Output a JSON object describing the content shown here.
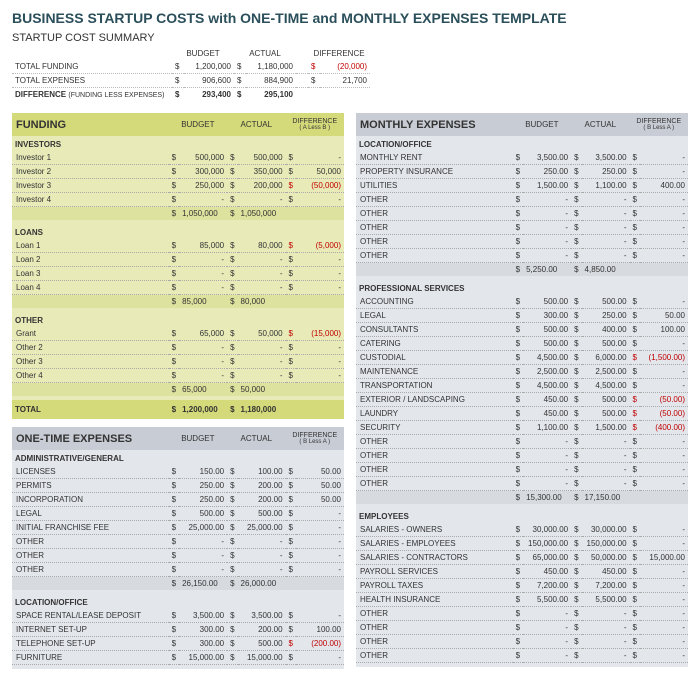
{
  "title": "BUSINESS STARTUP COSTS with ONE-TIME and MONTHLY EXPENSES TEMPLATE",
  "summary": {
    "title": "STARTUP COST SUMMARY",
    "columns": [
      "BUDGET",
      "ACTUAL",
      "DIFFERENCE"
    ],
    "rows": [
      {
        "label": "TOTAL FUNDING",
        "budget": "1,200,000",
        "actual": "1,180,000",
        "diff": "(20,000)",
        "diff_neg": true
      },
      {
        "label": "TOTAL EXPENSES",
        "budget": "906,600",
        "actual": "884,900",
        "diff": "21,700",
        "diff_neg": false
      }
    ],
    "diff_row": {
      "label": "DIFFERENCE",
      "note": "(FUNDING LESS EXPENSES)",
      "budget": "293,400",
      "actual": "295,100"
    }
  },
  "funding": {
    "title": "FUNDING",
    "columns": [
      "BUDGET",
      "ACTUAL"
    ],
    "diff_head": "DIFFERENCE",
    "diff_sub": "( A Less B )",
    "groups": [
      {
        "name": "INVESTORS",
        "rows": [
          {
            "label": "Investor 1",
            "b": "500,000",
            "a": "500,000",
            "d": "-"
          },
          {
            "label": "Investor 2",
            "b": "300,000",
            "a": "350,000",
            "d": "50,000"
          },
          {
            "label": "Investor 3",
            "b": "250,000",
            "a": "200,000",
            "d": "(50,000)",
            "neg": true
          },
          {
            "label": "Investor 4",
            "b": "-",
            "a": "-",
            "d": "-"
          }
        ],
        "subtotal": {
          "b": "1,050,000",
          "a": "1,050,000"
        }
      },
      {
        "name": "LOANS",
        "rows": [
          {
            "label": "Loan 1",
            "b": "85,000",
            "a": "80,000",
            "d": "(5,000)",
            "neg": true
          },
          {
            "label": "Loan 2",
            "b": "-",
            "a": "-",
            "d": "-"
          },
          {
            "label": "Loan 3",
            "b": "-",
            "a": "-",
            "d": "-"
          },
          {
            "label": "Loan 4",
            "b": "-",
            "a": "-",
            "d": "-"
          }
        ],
        "subtotal": {
          "b": "85,000",
          "a": "80,000"
        }
      },
      {
        "name": "OTHER",
        "rows": [
          {
            "label": "Grant",
            "b": "65,000",
            "a": "50,000",
            "d": "(15,000)",
            "neg": true
          },
          {
            "label": "Other 2",
            "b": "-",
            "a": "-",
            "d": "-"
          },
          {
            "label": "Other 3",
            "b": "-",
            "a": "-",
            "d": "-"
          },
          {
            "label": "Other 4",
            "b": "-",
            "a": "-",
            "d": "-"
          }
        ],
        "subtotal": {
          "b": "65,000",
          "a": "50,000"
        }
      }
    ],
    "total": {
      "label": "TOTAL",
      "b": "1,200,000",
      "a": "1,180,000"
    }
  },
  "onetime": {
    "title": "ONE-TIME EXPENSES",
    "columns": [
      "BUDGET",
      "ACTUAL"
    ],
    "diff_head": "DIFFERENCE",
    "diff_sub": "( B Less A )",
    "groups": [
      {
        "name": "ADMINISTRATIVE/GENERAL",
        "rows": [
          {
            "label": "LICENSES",
            "b": "150.00",
            "a": "100.00",
            "d": "50.00"
          },
          {
            "label": "PERMITS",
            "b": "250.00",
            "a": "200.00",
            "d": "50.00"
          },
          {
            "label": "INCORPORATION",
            "b": "250.00",
            "a": "200.00",
            "d": "50.00"
          },
          {
            "label": "LEGAL",
            "b": "500.00",
            "a": "500.00",
            "d": "-"
          },
          {
            "label": "INITIAL FRANCHISE FEE",
            "b": "25,000.00",
            "a": "25,000.00",
            "d": "-"
          },
          {
            "label": "OTHER",
            "b": "-",
            "a": "-",
            "d": "-"
          },
          {
            "label": "OTHER",
            "b": "-",
            "a": "-",
            "d": "-"
          },
          {
            "label": "OTHER",
            "b": "-",
            "a": "-",
            "d": "-"
          }
        ],
        "subtotal": {
          "b": "26,150.00",
          "a": "26,000.00"
        }
      },
      {
        "name": "LOCATION/OFFICE",
        "rows": [
          {
            "label": "SPACE RENTAL/LEASE DEPOSIT",
            "b": "3,500.00",
            "a": "3,500.00",
            "d": "-"
          },
          {
            "label": "INTERNET SET-UP",
            "b": "300.00",
            "a": "200.00",
            "d": "100.00"
          },
          {
            "label": "TELEPHONE SET-UP",
            "b": "300.00",
            "a": "500.00",
            "d": "(200.00)",
            "neg": true
          },
          {
            "label": "FURNITURE",
            "b": "15,000.00",
            "a": "15,000.00",
            "d": "-"
          }
        ]
      }
    ]
  },
  "monthly": {
    "title": "MONTHLY EXPENSES",
    "columns": [
      "BUDGET",
      "ACTUAL"
    ],
    "diff_head": "DIFFERENCE",
    "diff_sub": "( B Less A )",
    "groups": [
      {
        "name": "LOCATION/OFFICE",
        "rows": [
          {
            "label": "MONTHLY RENT",
            "b": "3,500.00",
            "a": "3,500.00",
            "d": "-"
          },
          {
            "label": "PROPERTY INSURANCE",
            "b": "250.00",
            "a": "250.00",
            "d": "-"
          },
          {
            "label": "UTILITIES",
            "b": "1,500.00",
            "a": "1,100.00",
            "d": "400.00"
          },
          {
            "label": "OTHER",
            "b": "-",
            "a": "-",
            "d": "-"
          },
          {
            "label": "OTHER",
            "b": "-",
            "a": "-",
            "d": "-"
          },
          {
            "label": "OTHER",
            "b": "-",
            "a": "-",
            "d": "-"
          },
          {
            "label": "OTHER",
            "b": "-",
            "a": "-",
            "d": "-"
          },
          {
            "label": "OTHER",
            "b": "-",
            "a": "-",
            "d": "-"
          }
        ],
        "subtotal": {
          "b": "5,250.00",
          "a": "4,850.00"
        }
      },
      {
        "name": "PROFESSIONAL SERVICES",
        "rows": [
          {
            "label": "ACCOUNTING",
            "b": "500.00",
            "a": "500.00",
            "d": "-"
          },
          {
            "label": "LEGAL",
            "b": "300.00",
            "a": "250.00",
            "d": "50.00"
          },
          {
            "label": "CONSULTANTS",
            "b": "500.00",
            "a": "400.00",
            "d": "100.00"
          },
          {
            "label": "CATERING",
            "b": "500.00",
            "a": "500.00",
            "d": "-"
          },
          {
            "label": "CUSTODIAL",
            "b": "4,500.00",
            "a": "6,000.00",
            "d": "(1,500.00)",
            "neg": true
          },
          {
            "label": "MAINTENANCE",
            "b": "2,500.00",
            "a": "2,500.00",
            "d": "-"
          },
          {
            "label": "TRANSPORTATION",
            "b": "4,500.00",
            "a": "4,500.00",
            "d": "-"
          },
          {
            "label": "EXTERIOR / LANDSCAPING",
            "b": "450.00",
            "a": "500.00",
            "d": "(50.00)",
            "neg": true
          },
          {
            "label": "LAUNDRY",
            "b": "450.00",
            "a": "500.00",
            "d": "(50.00)",
            "neg": true
          },
          {
            "label": "SECURITY",
            "b": "1,100.00",
            "a": "1,500.00",
            "d": "(400.00)",
            "neg": true
          },
          {
            "label": "OTHER",
            "b": "-",
            "a": "-",
            "d": "-"
          },
          {
            "label": "OTHER",
            "b": "-",
            "a": "-",
            "d": "-"
          },
          {
            "label": "OTHER",
            "b": "-",
            "a": "-",
            "d": "-"
          },
          {
            "label": "OTHER",
            "b": "-",
            "a": "-",
            "d": "-"
          }
        ],
        "subtotal": {
          "b": "15,300.00",
          "a": "17,150.00"
        }
      },
      {
        "name": "EMPLOYEES",
        "rows": [
          {
            "label": "SALARIES - OWNERS",
            "b": "30,000.00",
            "a": "30,000.00",
            "d": "-"
          },
          {
            "label": "SALARIES - EMPLOYEES",
            "b": "150,000.00",
            "a": "150,000.00",
            "d": "-"
          },
          {
            "label": "SALARIES - CONTRACTORS",
            "b": "65,000.00",
            "a": "50,000.00",
            "d": "15,000.00"
          },
          {
            "label": "PAYROLL SERVICES",
            "b": "450.00",
            "a": "450.00",
            "d": "-"
          },
          {
            "label": "PAYROLL TAXES",
            "b": "7,200.00",
            "a": "7,200.00",
            "d": "-"
          },
          {
            "label": "HEALTH INSURANCE",
            "b": "5,500.00",
            "a": "5,500.00",
            "d": "-"
          },
          {
            "label": "OTHER",
            "b": "-",
            "a": "-",
            "d": "-"
          },
          {
            "label": "OTHER",
            "b": "-",
            "a": "-",
            "d": "-"
          },
          {
            "label": "OTHER",
            "b": "-",
            "a": "-",
            "d": "-"
          },
          {
            "label": "OTHER",
            "b": "-",
            "a": "-",
            "d": "-"
          }
        ]
      }
    ]
  }
}
